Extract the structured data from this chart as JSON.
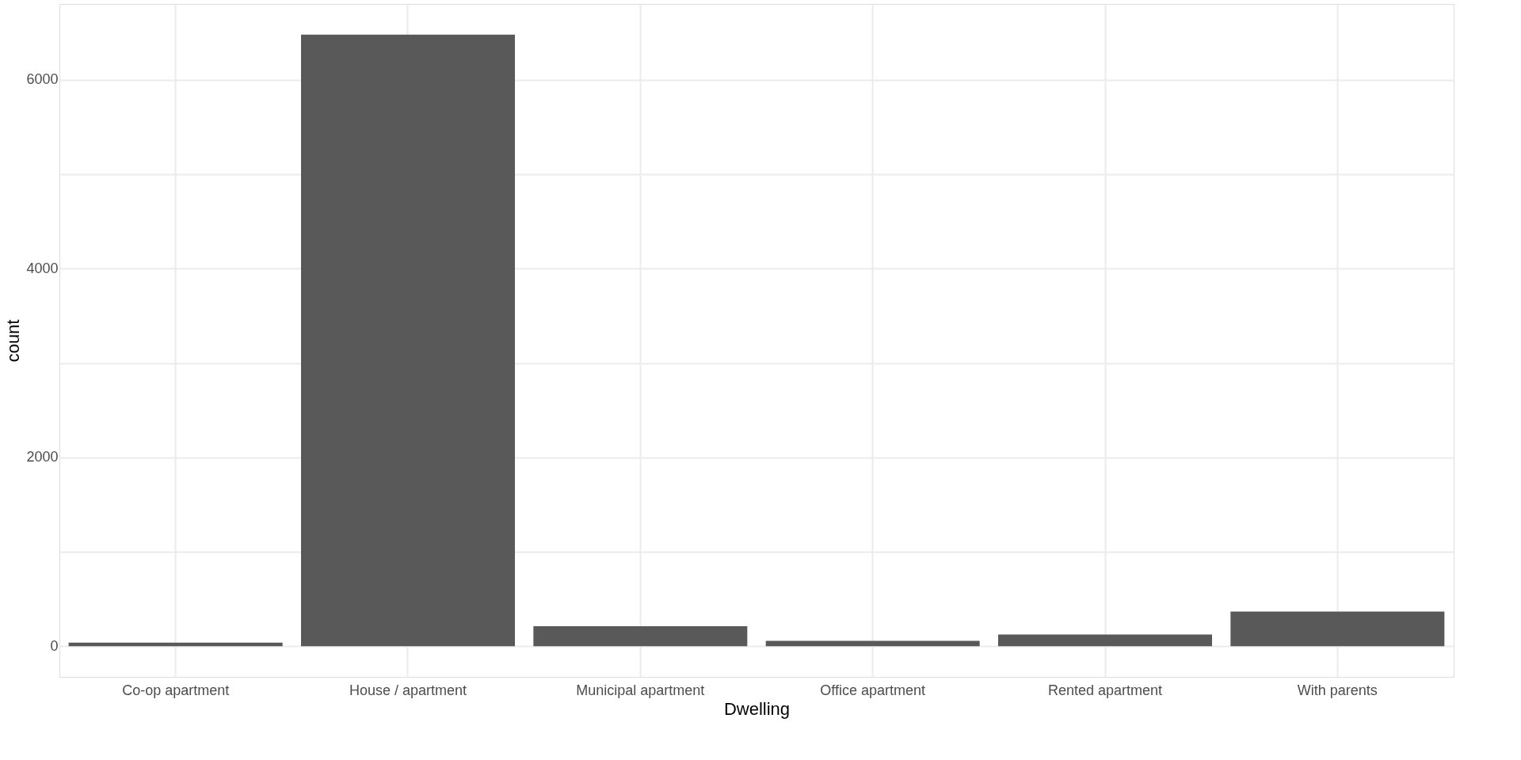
{
  "chart_data": {
    "type": "bar",
    "xlabel": "Dwelling",
    "ylabel": "count",
    "categories": [
      "Co-op apartment",
      "House / apartment",
      "Municipal apartment",
      "Office apartment",
      "Rented apartment",
      "With parents"
    ],
    "values": [
      39,
      6480,
      212,
      58,
      125,
      367
    ],
    "color": "#595959",
    "ylim": [
      -324,
      6805
    ],
    "yticks": [
      0,
      {
        "value": 1000,
        "label": null
      },
      2000,
      {
        "value": 3000,
        "label": null
      },
      4000,
      {
        "value": 5000,
        "label": null
      },
      6000
    ],
    "grid": true
  }
}
